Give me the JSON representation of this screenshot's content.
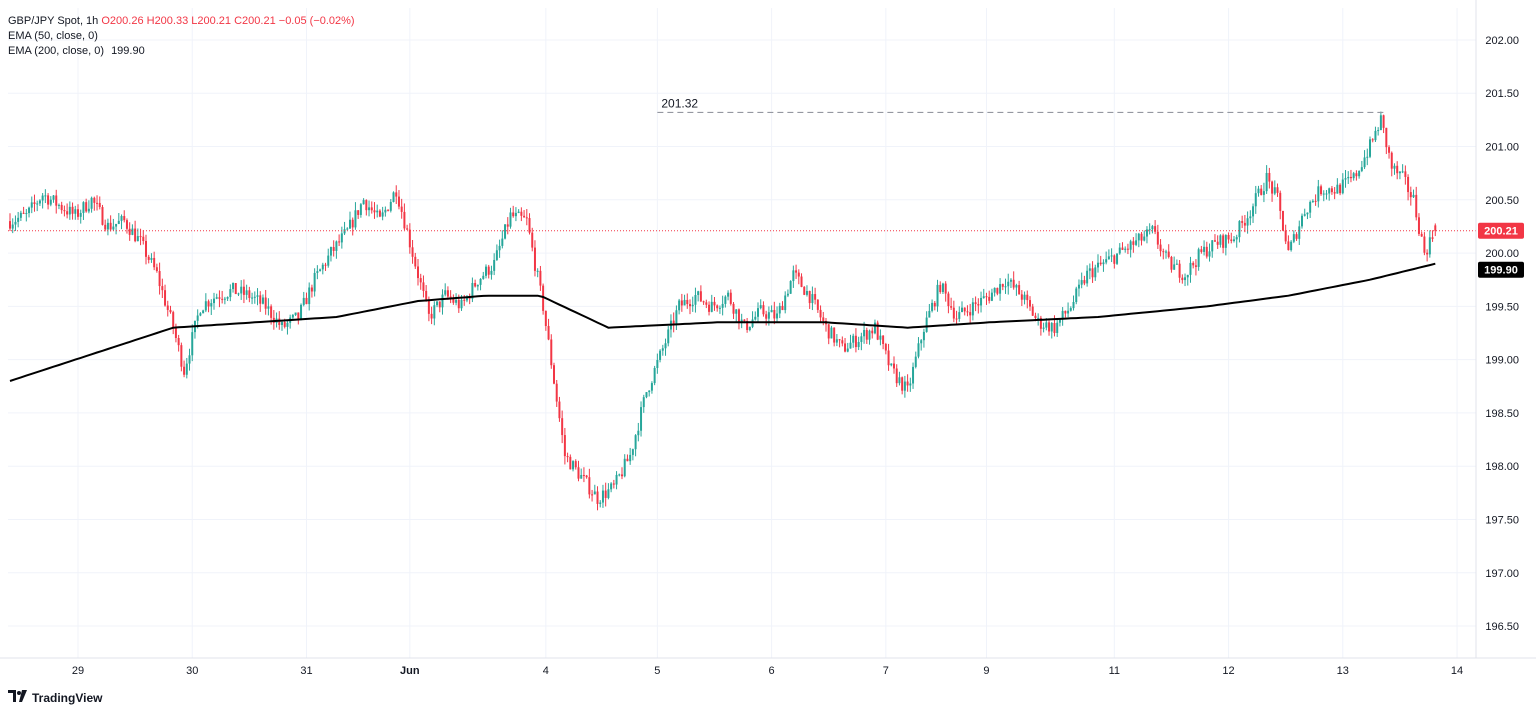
{
  "header": {
    "symbol": "GBP/JPY Spot, 1h",
    "ohlc": {
      "o": "O200.26",
      "h": "H200.33",
      "l": "L200.21",
      "c": "C200.21",
      "chg": "−0.05 (−0.02%)"
    },
    "ema50_label": "EMA (50, close, 0)",
    "ema200_label": "EMA (200, close, 0)",
    "ema200_value": "199.90"
  },
  "brand": {
    "name": "TradingView"
  },
  "colors": {
    "up": "#26a69a",
    "down": "#f23645",
    "ema": "#000000",
    "grid": "#f0f3fa",
    "last": "#f23645"
  },
  "chart_data": {
    "type": "candlestick",
    "title": "GBP/JPY Spot, 1h",
    "ylim": [
      196.2,
      202.3
    ],
    "y_ticks": [
      "202.00",
      "201.50",
      "201.00",
      "200.50",
      "200.00",
      "199.50",
      "199.00",
      "198.50",
      "198.00",
      "197.50",
      "197.00",
      "196.50"
    ],
    "x_ticks": [
      "29",
      "30",
      "31",
      "Jun",
      "4",
      "5",
      "6",
      "7",
      "9",
      "11",
      "12",
      "13",
      "14"
    ],
    "last_price_label": "200.21",
    "last_price": 200.21,
    "ema200_label": "199.90",
    "ema200_last": 199.9,
    "high_annotation": {
      "label": "201.32",
      "value": 201.32
    },
    "price_anchors": [
      [
        0,
        200.3
      ],
      [
        6,
        200.35
      ],
      [
        12,
        200.55
      ],
      [
        18,
        200.45
      ],
      [
        24,
        200.35
      ],
      [
        30,
        200.5
      ],
      [
        36,
        200.25
      ],
      [
        42,
        200.3
      ],
      [
        48,
        200.1
      ],
      [
        54,
        199.8
      ],
      [
        60,
        199.3
      ],
      [
        64,
        198.9
      ],
      [
        70,
        199.5
      ],
      [
        76,
        199.6
      ],
      [
        82,
        199.65
      ],
      [
        88,
        199.6
      ],
      [
        94,
        199.5
      ],
      [
        100,
        199.3
      ],
      [
        106,
        199.4
      ],
      [
        112,
        199.75
      ],
      [
        118,
        200.0
      ],
      [
        124,
        200.2
      ],
      [
        130,
        200.5
      ],
      [
        136,
        200.3
      ],
      [
        142,
        200.6
      ],
      [
        148,
        200.0
      ],
      [
        154,
        199.4
      ],
      [
        160,
        199.6
      ],
      [
        166,
        199.5
      ],
      [
        172,
        199.75
      ],
      [
        178,
        199.9
      ],
      [
        184,
        200.35
      ],
      [
        190,
        200.3
      ],
      [
        196,
        199.5
      ],
      [
        200,
        198.8
      ],
      [
        204,
        198.1
      ],
      [
        210,
        197.9
      ],
      [
        216,
        197.7
      ],
      [
        222,
        197.8
      ],
      [
        228,
        198.1
      ],
      [
        234,
        198.7
      ],
      [
        240,
        199.1
      ],
      [
        246,
        199.5
      ],
      [
        252,
        199.6
      ],
      [
        258,
        199.5
      ],
      [
        264,
        199.6
      ],
      [
        270,
        199.3
      ],
      [
        276,
        199.45
      ],
      [
        282,
        199.4
      ],
      [
        288,
        199.8
      ],
      [
        294,
        199.6
      ],
      [
        300,
        199.3
      ],
      [
        306,
        199.1
      ],
      [
        312,
        199.2
      ],
      [
        318,
        199.3
      ],
      [
        324,
        198.9
      ],
      [
        330,
        198.7
      ],
      [
        336,
        199.3
      ],
      [
        342,
        199.7
      ],
      [
        348,
        199.4
      ],
      [
        354,
        199.5
      ],
      [
        360,
        199.6
      ],
      [
        366,
        199.75
      ],
      [
        372,
        199.6
      ],
      [
        378,
        199.35
      ],
      [
        384,
        199.3
      ],
      [
        390,
        199.5
      ],
      [
        396,
        199.8
      ],
      [
        402,
        199.9
      ],
      [
        408,
        200.0
      ],
      [
        414,
        200.1
      ],
      [
        420,
        200.2
      ],
      [
        426,
        199.9
      ],
      [
        432,
        199.8
      ],
      [
        438,
        200.0
      ],
      [
        444,
        200.1
      ],
      [
        450,
        200.15
      ],
      [
        456,
        200.4
      ],
      [
        462,
        200.7
      ],
      [
        466,
        200.5
      ],
      [
        470,
        200.0
      ],
      [
        476,
        200.4
      ],
      [
        482,
        200.6
      ],
      [
        488,
        200.6
      ],
      [
        494,
        200.7
      ],
      [
        500,
        201.0
      ],
      [
        504,
        201.25
      ],
      [
        508,
        200.8
      ],
      [
        512,
        200.7
      ],
      [
        516,
        200.5
      ],
      [
        520,
        200.0
      ],
      [
        524,
        200.21
      ]
    ],
    "ema200_anchors": [
      [
        0,
        198.8
      ],
      [
        30,
        199.05
      ],
      [
        60,
        199.3
      ],
      [
        90,
        199.35
      ],
      [
        120,
        199.4
      ],
      [
        150,
        199.55
      ],
      [
        175,
        199.6
      ],
      [
        195,
        199.6
      ],
      [
        220,
        199.3
      ],
      [
        260,
        199.35
      ],
      [
        300,
        199.35
      ],
      [
        330,
        199.3
      ],
      [
        360,
        199.35
      ],
      [
        400,
        199.4
      ],
      [
        440,
        199.5
      ],
      [
        470,
        199.6
      ],
      [
        500,
        199.75
      ],
      [
        524,
        199.9
      ]
    ]
  }
}
